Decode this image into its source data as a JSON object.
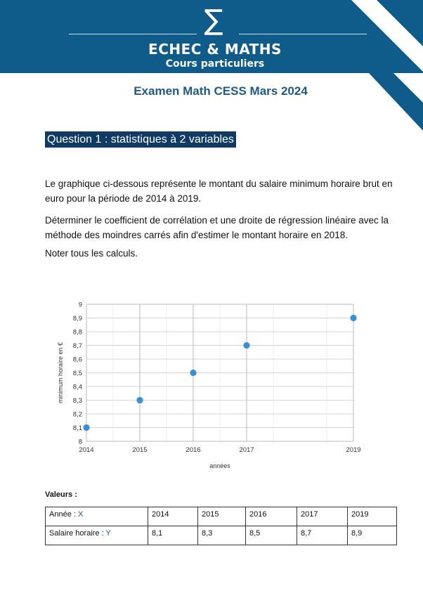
{
  "header": {
    "logo_symbol": "∑",
    "brand_name": "ECHEC & MATHS",
    "tagline": "Cours particuliers",
    "banner_color": "#0f5b8a"
  },
  "exam_title": "Examen Math CESS Mars 2024",
  "question": {
    "heading": "Question 1 : statistiques à 2 variables",
    "paragraphs": [
      "Le graphique ci-dessous représente le montant du salaire minimum horaire brut en euro pour la période de 2014 à 2019.",
      "Déterminer le coefficient de corrélation et une droite de régression linéaire avec la méthode des moindres carrés afin d'estimer le montant horaire en 2018.",
      "Noter tous les calculs."
    ]
  },
  "chart_data": {
    "type": "scatter",
    "title": "",
    "xlabel": "années",
    "ylabel": "minimum horaire en €",
    "x": [
      2014,
      2015,
      2016,
      2017,
      2019
    ],
    "y": [
      8.1,
      8.3,
      8.5,
      8.7,
      8.9
    ],
    "xlim": [
      2014,
      2019
    ],
    "ylim": [
      8,
      9
    ],
    "x_ticks": [
      "2014",
      "2015",
      "2016",
      "2017",
      "2019"
    ],
    "y_ticks": [
      "8",
      "8,1",
      "8,2",
      "8,3",
      "8,4",
      "8,5",
      "8,6",
      "8,7",
      "8,8",
      "8,9",
      "9"
    ],
    "grid": true,
    "point_color": "#3a8fd6"
  },
  "values_table": {
    "label": "Valeurs :",
    "rows": [
      {
        "label": "Année : ",
        "var": "X",
        "values": [
          "2014",
          "2015",
          "2016",
          "2017",
          "2019"
        ]
      },
      {
        "label": "Salaire horaire : ",
        "var": "Y",
        "values": [
          "8,1",
          "8,3",
          "8,5",
          "8,7",
          "8,9"
        ]
      }
    ]
  }
}
